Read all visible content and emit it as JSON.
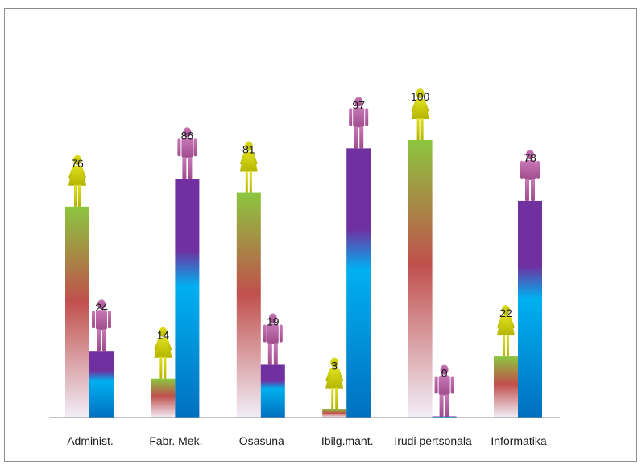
{
  "chart_data": {
    "type": "bar",
    "title": "",
    "xlabel": "",
    "ylabel": "",
    "ylim": [
      0,
      100
    ],
    "grid": false,
    "legend": "none",
    "categories": [
      "Administ.",
      "Fabr. Mek.",
      "Osasuna",
      "Ibilg.mant.",
      "Irudi pertsonala",
      "Informatika"
    ],
    "series": [
      {
        "icon": "female-figure-icon",
        "color_top": "#8cc63e",
        "color_mid": "#c0504d",
        "color_bottom": "#f2eef8",
        "values": [
          76,
          14,
          81,
          3,
          100,
          22
        ],
        "labels": [
          "76",
          "14",
          "81",
          "3",
          "100",
          "22"
        ]
      },
      {
        "icon": "male-figure-icon",
        "color_top": "#7030a0",
        "color_mid": "#00b0f0",
        "color_bottom": "#0070c0",
        "values": [
          24,
          86,
          19,
          97,
          0,
          78
        ],
        "labels": [
          "24",
          "86",
          "19",
          "97",
          "0",
          "78"
        ]
      }
    ],
    "colors": {
      "female_icon": "#cccc00",
      "male_icon": "#c060a8",
      "axis": "#8c8c8c"
    }
  }
}
